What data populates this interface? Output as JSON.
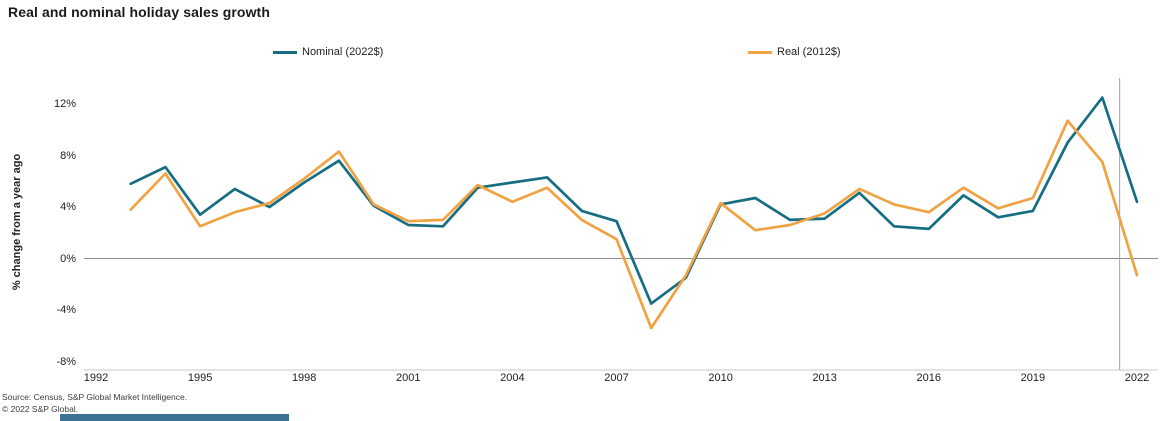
{
  "title": "Real and nominal holiday sales growth",
  "legend": [
    {
      "label": "Nominal (2022$)",
      "color": "#176e82"
    },
    {
      "label": "Real (2012$)",
      "color": "#efa343"
    }
  ],
  "y_axis": {
    "title": "% change from a year ago",
    "ticks": [
      "12%",
      "8%",
      "4%",
      "0%",
      "-4%",
      "-8%"
    ],
    "tick_values": [
      12,
      8,
      4,
      0,
      -4,
      -8
    ]
  },
  "x_axis": {
    "ticks": [
      "1992",
      "1995",
      "1998",
      "2001",
      "2004",
      "2007",
      "2010",
      "2013",
      "2016",
      "2019",
      "2022"
    ]
  },
  "source_line1": "Source: Census, S&P Global Market Intelligence.",
  "source_line2": "© 2022 S&P Global.",
  "colors": {
    "zero_line": "#8c8c8c",
    "axis_line": "#c9c9c9",
    "reference_line": "#a3a3a3",
    "brand_bar": "#3c7292"
  },
  "chart_data": {
    "type": "line",
    "x": [
      1993,
      1994,
      1995,
      1996,
      1997,
      1998,
      1999,
      2000,
      2001,
      2002,
      2003,
      2004,
      2005,
      2006,
      2007,
      2008,
      2009,
      2010,
      2011,
      2012,
      2013,
      2014,
      2015,
      2016,
      2017,
      2018,
      2019,
      2020,
      2021,
      2022
    ],
    "series": [
      {
        "name": "Nominal (2022$)",
        "color": "#176e82",
        "values": [
          5.8,
          7.1,
          3.4,
          5.4,
          4.0,
          5.9,
          7.6,
          4.1,
          2.6,
          2.5,
          5.5,
          5.9,
          6.3,
          3.7,
          2.9,
          -3.5,
          -1.5,
          4.2,
          4.7,
          3.0,
          3.1,
          5.1,
          2.5,
          2.3,
          4.9,
          3.2,
          3.7,
          9.0,
          12.5,
          4.4
        ]
      },
      {
        "name": "Real (2012$)",
        "color": "#efa343",
        "values": [
          3.8,
          6.6,
          2.5,
          3.6,
          4.3,
          6.2,
          8.3,
          4.2,
          2.9,
          3.0,
          5.7,
          4.4,
          5.5,
          3.0,
          1.5,
          -5.4,
          -1.3,
          4.3,
          2.2,
          2.6,
          3.5,
          5.4,
          4.2,
          3.6,
          5.5,
          3.9,
          4.7,
          10.7,
          7.5,
          -1.3
        ]
      }
    ],
    "title": "Real and nominal holiday sales growth",
    "xlabel": "",
    "ylabel": "% change from a year ago",
    "ylim": [
      -8,
      14
    ],
    "xlim": [
      1992,
      2022.6
    ],
    "grid": "zero-line-only",
    "legend_position": "top",
    "annotations": [
      {
        "type": "vline",
        "x": 2021.5
      }
    ]
  }
}
